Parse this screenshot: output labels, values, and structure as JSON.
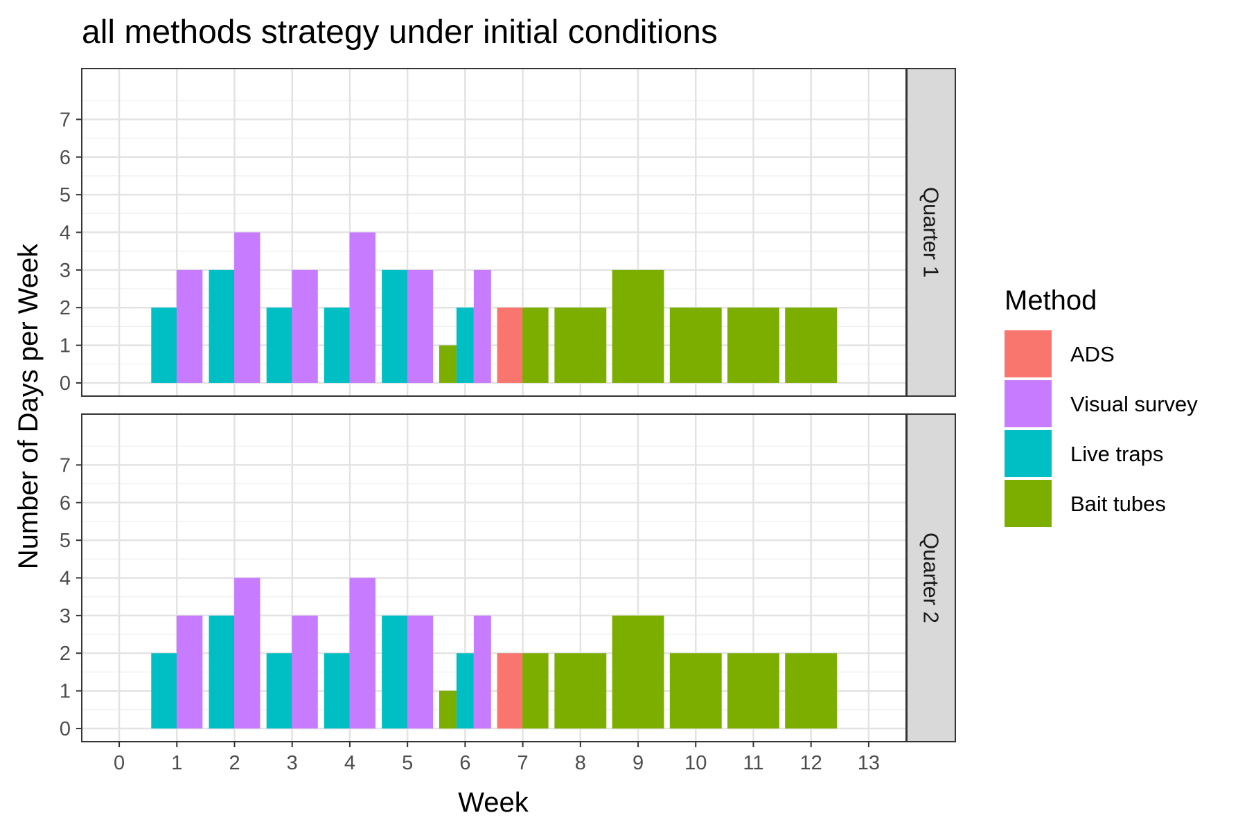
{
  "chart_data": {
    "type": "bar",
    "title": "all methods strategy under initial conditions",
    "xlabel": "Week",
    "ylabel": "Number of Days per Week",
    "x_ticks": [
      "0",
      "1",
      "2",
      "3",
      "4",
      "5",
      "6",
      "7",
      "8",
      "9",
      "10",
      "11",
      "12",
      "13"
    ],
    "y_ticks": [
      "0",
      "1",
      "2",
      "3",
      "4",
      "5",
      "6",
      "7"
    ],
    "xlim": [
      -0.65,
      13.65
    ],
    "ylim": [
      -0.35,
      8.35
    ],
    "grid": true,
    "legend": {
      "title": "Method",
      "placement": "right",
      "entries": [
        "ADS",
        "Visual survey",
        "Live traps",
        "Bait tubes"
      ]
    },
    "colors": {
      "ADS": "#F8766D",
      "Visual survey": "#C77CFF",
      "Live traps": "#00BFC4",
      "Bait tubes": "#7CAE00"
    },
    "facets": [
      {
        "label": "Quarter 1",
        "bars": [
          {
            "method": "Live traps",
            "week": 1,
            "offset": -0.22,
            "width": 0.45,
            "value": 2
          },
          {
            "method": "Visual survey",
            "week": 1,
            "offset": 0.22,
            "width": 0.45,
            "value": 3
          },
          {
            "method": "Live traps",
            "week": 2,
            "offset": -0.22,
            "width": 0.45,
            "value": 3
          },
          {
            "method": "Visual survey",
            "week": 2,
            "offset": 0.22,
            "width": 0.45,
            "value": 4
          },
          {
            "method": "Live traps",
            "week": 3,
            "offset": -0.22,
            "width": 0.45,
            "value": 2
          },
          {
            "method": "Visual survey",
            "week": 3,
            "offset": 0.22,
            "width": 0.45,
            "value": 3
          },
          {
            "method": "Live traps",
            "week": 4,
            "offset": -0.22,
            "width": 0.45,
            "value": 2
          },
          {
            "method": "Visual survey",
            "week": 4,
            "offset": 0.22,
            "width": 0.45,
            "value": 4
          },
          {
            "method": "Live traps",
            "week": 5,
            "offset": -0.22,
            "width": 0.45,
            "value": 3
          },
          {
            "method": "Visual survey",
            "week": 5,
            "offset": 0.22,
            "width": 0.45,
            "value": 3
          },
          {
            "method": "Bait tubes",
            "week": 6,
            "offset": -0.3,
            "width": 0.3,
            "value": 1
          },
          {
            "method": "Live traps",
            "week": 6,
            "offset": 0.0,
            "width": 0.3,
            "value": 2
          },
          {
            "method": "Visual survey",
            "week": 6,
            "offset": 0.3,
            "width": 0.3,
            "value": 3
          },
          {
            "method": "ADS",
            "week": 7,
            "offset": -0.22,
            "width": 0.45,
            "value": 2
          },
          {
            "method": "Bait tubes",
            "week": 7,
            "offset": 0.22,
            "width": 0.45,
            "value": 2
          },
          {
            "method": "Bait tubes",
            "week": 8,
            "offset": 0,
            "width": 0.9,
            "value": 2
          },
          {
            "method": "Bait tubes",
            "week": 9,
            "offset": 0,
            "width": 0.9,
            "value": 3
          },
          {
            "method": "Bait tubes",
            "week": 10,
            "offset": 0,
            "width": 0.9,
            "value": 2
          },
          {
            "method": "Bait tubes",
            "week": 11,
            "offset": 0,
            "width": 0.9,
            "value": 2
          },
          {
            "method": "Bait tubes",
            "week": 12,
            "offset": 0,
            "width": 0.9,
            "value": 2
          }
        ]
      },
      {
        "label": "Quarter 2",
        "bars": [
          {
            "method": "Live traps",
            "week": 1,
            "offset": -0.22,
            "width": 0.45,
            "value": 2
          },
          {
            "method": "Visual survey",
            "week": 1,
            "offset": 0.22,
            "width": 0.45,
            "value": 3
          },
          {
            "method": "Live traps",
            "week": 2,
            "offset": -0.22,
            "width": 0.45,
            "value": 3
          },
          {
            "method": "Visual survey",
            "week": 2,
            "offset": 0.22,
            "width": 0.45,
            "value": 4
          },
          {
            "method": "Live traps",
            "week": 3,
            "offset": -0.22,
            "width": 0.45,
            "value": 2
          },
          {
            "method": "Visual survey",
            "week": 3,
            "offset": 0.22,
            "width": 0.45,
            "value": 3
          },
          {
            "method": "Live traps",
            "week": 4,
            "offset": -0.22,
            "width": 0.45,
            "value": 2
          },
          {
            "method": "Visual survey",
            "week": 4,
            "offset": 0.22,
            "width": 0.45,
            "value": 4
          },
          {
            "method": "Live traps",
            "week": 5,
            "offset": -0.22,
            "width": 0.45,
            "value": 3
          },
          {
            "method": "Visual survey",
            "week": 5,
            "offset": 0.22,
            "width": 0.45,
            "value": 3
          },
          {
            "method": "Bait tubes",
            "week": 6,
            "offset": -0.3,
            "width": 0.3,
            "value": 1
          },
          {
            "method": "Live traps",
            "week": 6,
            "offset": 0.0,
            "width": 0.3,
            "value": 2
          },
          {
            "method": "Visual survey",
            "week": 6,
            "offset": 0.3,
            "width": 0.3,
            "value": 3
          },
          {
            "method": "ADS",
            "week": 7,
            "offset": -0.22,
            "width": 0.45,
            "value": 2
          },
          {
            "method": "Bait tubes",
            "week": 7,
            "offset": 0.22,
            "width": 0.45,
            "value": 2
          },
          {
            "method": "Bait tubes",
            "week": 8,
            "offset": 0,
            "width": 0.9,
            "value": 2
          },
          {
            "method": "Bait tubes",
            "week": 9,
            "offset": 0,
            "width": 0.9,
            "value": 3
          },
          {
            "method": "Bait tubes",
            "week": 10,
            "offset": 0,
            "width": 0.9,
            "value": 2
          },
          {
            "method": "Bait tubes",
            "week": 11,
            "offset": 0,
            "width": 0.9,
            "value": 2
          },
          {
            "method": "Bait tubes",
            "week": 12,
            "offset": 0,
            "width": 0.9,
            "value": 2
          }
        ]
      }
    ]
  }
}
